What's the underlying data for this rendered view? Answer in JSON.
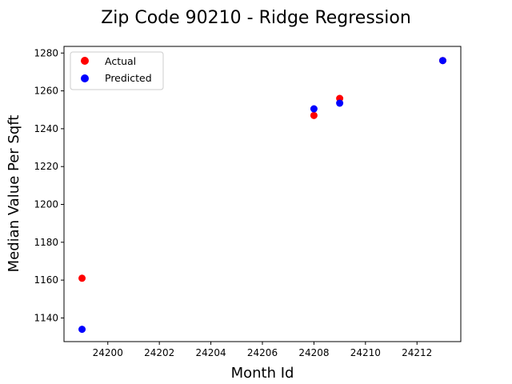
{
  "chart_data": {
    "type": "scatter",
    "title": "Zip Code 90210 - Ridge Regression",
    "xlabel": "Month Id",
    "ylabel": "Median Value Per Sqft",
    "xlim": [
      24198.3,
      24213.7
    ],
    "ylim": [
      1127.5,
      1283.5
    ],
    "xticks": [
      24200,
      24202,
      24204,
      24206,
      24208,
      24210,
      24212
    ],
    "yticks": [
      1140,
      1160,
      1180,
      1200,
      1220,
      1240,
      1260,
      1280
    ],
    "grid": false,
    "legend_position": "top-left",
    "series": [
      {
        "name": "Actual",
        "color": "#ff0000",
        "points": [
          [
            24199,
            1161
          ],
          [
            24208,
            1247
          ],
          [
            24209,
            1256
          ],
          [
            24213,
            1276
          ]
        ]
      },
      {
        "name": "Predicted",
        "color": "#0000ff",
        "points": [
          [
            24199,
            1134
          ],
          [
            24208,
            1250.5
          ],
          [
            24209,
            1253.5
          ],
          [
            24213,
            1276
          ]
        ]
      }
    ]
  }
}
